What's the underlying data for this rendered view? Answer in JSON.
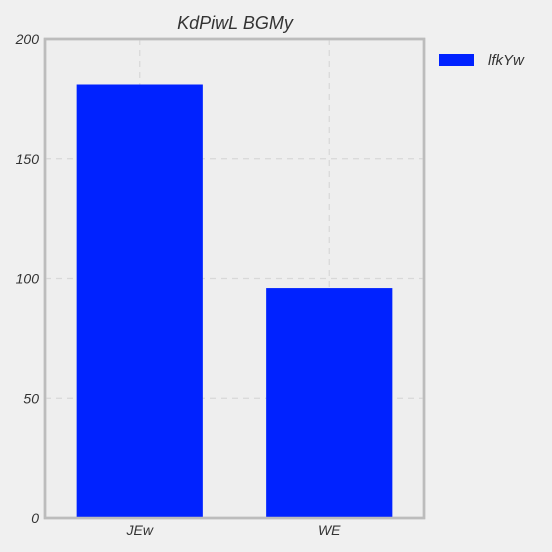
{
  "chart_data": {
    "type": "bar",
    "title": "KdPiwL BGMy",
    "xlabel": "",
    "ylabel": "",
    "categories": [
      "JEw",
      "WE"
    ],
    "series": [
      {
        "name": "lfkYw",
        "values": [
          181,
          96
        ],
        "color": "#0022ff"
      }
    ],
    "ylim": [
      0,
      200
    ],
    "yticks": [
      0,
      50,
      100,
      150,
      200
    ],
    "grid": true,
    "legend_position": "outside-right-top"
  },
  "colors": {
    "background": "#f0f0f0",
    "axes_background": "#eeeeee",
    "axes_border": "#bcbcbc",
    "grid": "#d8d8d8",
    "text": "#333333"
  }
}
